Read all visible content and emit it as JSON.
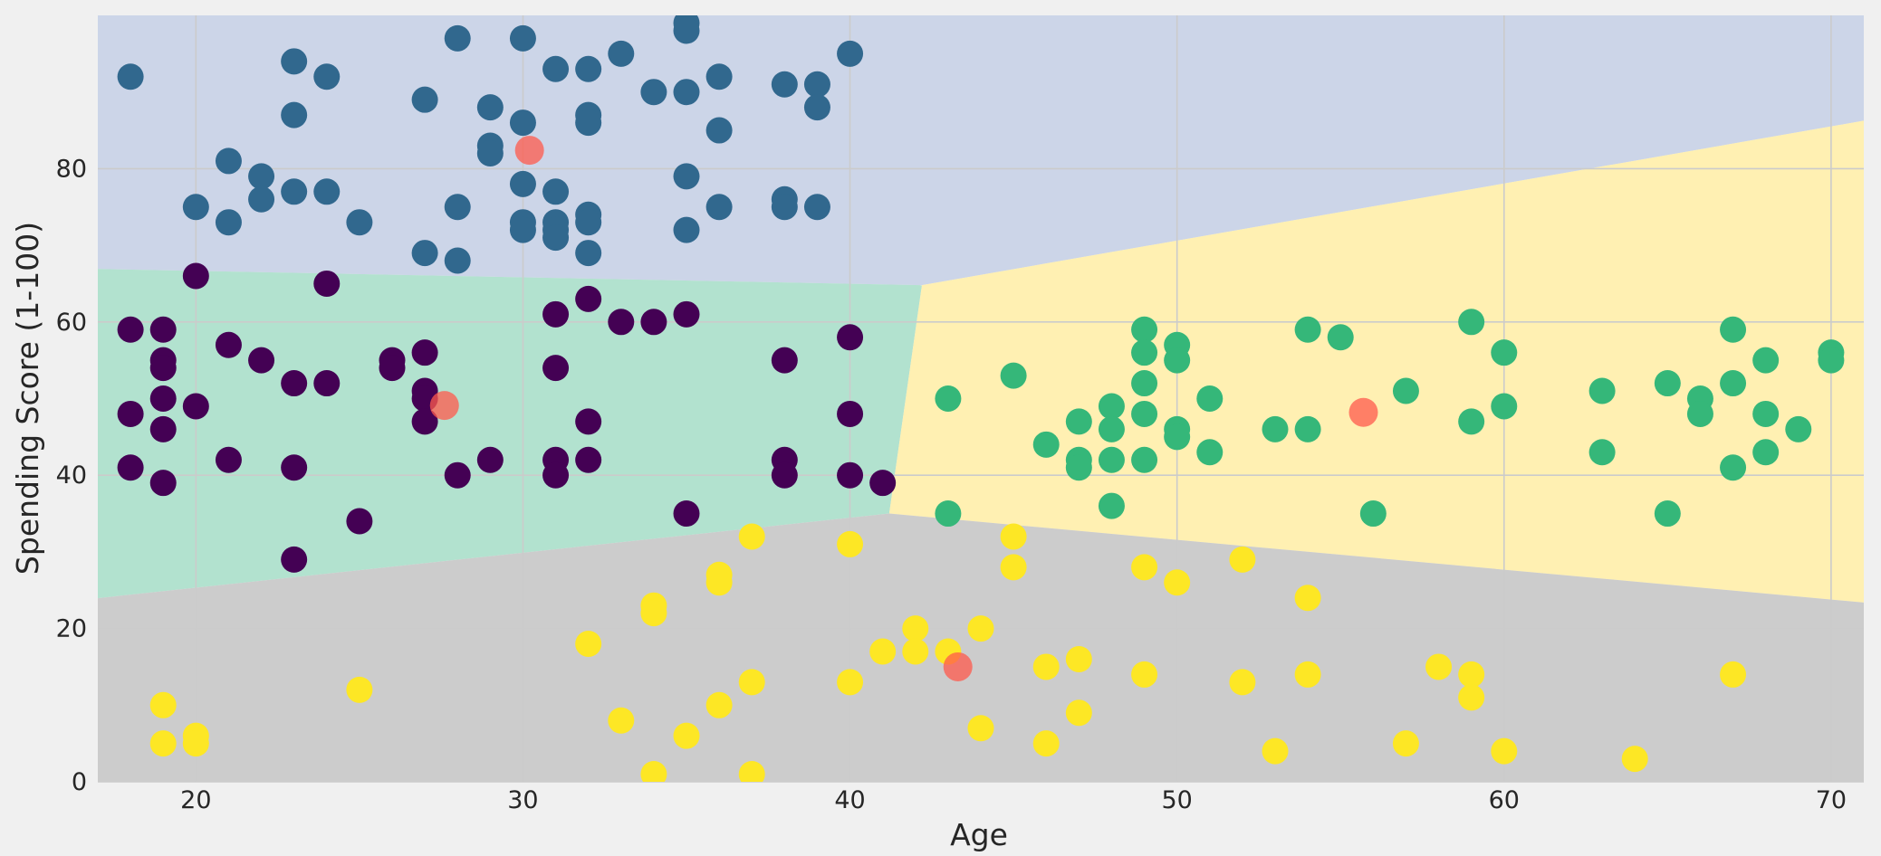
{
  "chart_data": {
    "type": "scatter",
    "title": "",
    "xlabel": "Age",
    "ylabel": "Spending Score (1-100)",
    "xlim": [
      17,
      71
    ],
    "ylim": [
      0,
      100
    ],
    "xticks": [
      20,
      30,
      40,
      50,
      60,
      70
    ],
    "yticks": [
      0,
      20,
      40,
      60,
      80
    ],
    "grid": true,
    "decision_regions": {
      "colors": {
        "top": "#ccd5e8",
        "left_middle": "#b2e2cf",
        "bottom": "#cccccc",
        "right_middle": "#fff0b2"
      }
    },
    "series": [
      {
        "color": "#31688e",
        "points": [
          [
            18,
            92
          ],
          [
            20,
            75
          ],
          [
            21,
            81
          ],
          [
            21,
            73
          ],
          [
            22,
            79
          ],
          [
            22,
            76
          ],
          [
            23,
            94
          ],
          [
            23,
            87
          ],
          [
            23,
            77
          ],
          [
            24,
            92
          ],
          [
            24,
            77
          ],
          [
            25,
            73
          ],
          [
            27,
            89
          ],
          [
            27,
            69
          ],
          [
            28,
            97
          ],
          [
            28,
            75
          ],
          [
            28,
            68
          ],
          [
            29,
            88
          ],
          [
            29,
            83
          ],
          [
            29,
            82
          ],
          [
            30,
            97
          ],
          [
            30,
            86
          ],
          [
            30,
            78
          ],
          [
            30,
            73
          ],
          [
            30,
            72
          ],
          [
            31,
            93
          ],
          [
            31,
            77
          ],
          [
            31,
            73
          ],
          [
            31,
            72
          ],
          [
            31,
            71
          ],
          [
            32,
            93
          ],
          [
            32,
            87
          ],
          [
            32,
            86
          ],
          [
            32,
            74
          ],
          [
            32,
            73
          ],
          [
            32,
            69
          ],
          [
            33,
            95
          ],
          [
            34,
            90
          ],
          [
            35,
            99
          ],
          [
            35,
            98
          ],
          [
            35,
            90
          ],
          [
            35,
            79
          ],
          [
            35,
            72
          ],
          [
            36,
            92
          ],
          [
            36,
            85
          ],
          [
            36,
            75
          ],
          [
            38,
            91
          ],
          [
            38,
            76
          ],
          [
            38,
            75
          ],
          [
            39,
            91
          ],
          [
            39,
            88
          ],
          [
            39,
            75
          ],
          [
            40,
            95
          ]
        ]
      },
      {
        "color": "#440154",
        "points": [
          [
            18,
            59
          ],
          [
            18,
            48
          ],
          [
            18,
            41
          ],
          [
            19,
            59
          ],
          [
            19,
            55
          ],
          [
            19,
            54
          ],
          [
            19,
            50
          ],
          [
            19,
            46
          ],
          [
            19,
            39
          ],
          [
            20,
            66
          ],
          [
            20,
            49
          ],
          [
            21,
            57
          ],
          [
            21,
            42
          ],
          [
            22,
            55
          ],
          [
            23,
            52
          ],
          [
            23,
            41
          ],
          [
            23,
            29
          ],
          [
            24,
            65
          ],
          [
            24,
            52
          ],
          [
            25,
            34
          ],
          [
            26,
            55
          ],
          [
            26,
            54
          ],
          [
            27,
            56
          ],
          [
            27,
            51
          ],
          [
            27,
            50
          ],
          [
            27,
            47
          ],
          [
            28,
            40
          ],
          [
            29,
            42
          ],
          [
            31,
            61
          ],
          [
            31,
            54
          ],
          [
            31,
            42
          ],
          [
            31,
            40
          ],
          [
            32,
            63
          ],
          [
            32,
            47
          ],
          [
            32,
            42
          ],
          [
            33,
            60
          ],
          [
            34,
            60
          ],
          [
            35,
            61
          ],
          [
            35,
            35
          ],
          [
            38,
            55
          ],
          [
            38,
            42
          ],
          [
            38,
            40
          ],
          [
            40,
            58
          ],
          [
            40,
            48
          ],
          [
            40,
            40
          ],
          [
            41,
            39
          ]
        ]
      },
      {
        "color": "#35b779",
        "points": [
          [
            43,
            50
          ],
          [
            43,
            35
          ],
          [
            45,
            53
          ],
          [
            46,
            44
          ],
          [
            47,
            47
          ],
          [
            47,
            42
          ],
          [
            47,
            41
          ],
          [
            48,
            49
          ],
          [
            48,
            46
          ],
          [
            48,
            42
          ],
          [
            48,
            36
          ],
          [
            49,
            59
          ],
          [
            49,
            56
          ],
          [
            49,
            52
          ],
          [
            49,
            48
          ],
          [
            49,
            42
          ],
          [
            50,
            57
          ],
          [
            50,
            55
          ],
          [
            50,
            46
          ],
          [
            50,
            45
          ],
          [
            51,
            50
          ],
          [
            51,
            43
          ],
          [
            53,
            46
          ],
          [
            54,
            59
          ],
          [
            54,
            46
          ],
          [
            55,
            58
          ],
          [
            56,
            35
          ],
          [
            57,
            51
          ],
          [
            59,
            60
          ],
          [
            59,
            47
          ],
          [
            60,
            56
          ],
          [
            60,
            49
          ],
          [
            63,
            51
          ],
          [
            63,
            43
          ],
          [
            65,
            52
          ],
          [
            65,
            35
          ],
          [
            66,
            50
          ],
          [
            66,
            48
          ],
          [
            67,
            59
          ],
          [
            67,
            52
          ],
          [
            67,
            41
          ],
          [
            68,
            55
          ],
          [
            68,
            48
          ],
          [
            68,
            43
          ],
          [
            69,
            46
          ],
          [
            70,
            56
          ],
          [
            70,
            55
          ]
        ]
      },
      {
        "color": "#fde725",
        "points": [
          [
            19,
            10
          ],
          [
            19,
            5
          ],
          [
            20,
            6
          ],
          [
            20,
            5
          ],
          [
            25,
            12
          ],
          [
            32,
            18
          ],
          [
            33,
            8
          ],
          [
            34,
            23
          ],
          [
            34,
            22
          ],
          [
            34,
            1
          ],
          [
            35,
            6
          ],
          [
            36,
            27
          ],
          [
            36,
            26
          ],
          [
            36,
            10
          ],
          [
            37,
            32
          ],
          [
            37,
            13
          ],
          [
            37,
            1
          ],
          [
            40,
            31
          ],
          [
            40,
            13
          ],
          [
            41,
            17
          ],
          [
            42,
            20
          ],
          [
            42,
            17
          ],
          [
            43,
            17
          ],
          [
            44,
            20
          ],
          [
            44,
            7
          ],
          [
            45,
            32
          ],
          [
            45,
            28
          ],
          [
            46,
            15
          ],
          [
            46,
            5
          ],
          [
            47,
            16
          ],
          [
            47,
            9
          ],
          [
            49,
            28
          ],
          [
            49,
            14
          ],
          [
            50,
            26
          ],
          [
            52,
            29
          ],
          [
            52,
            13
          ],
          [
            53,
            4
          ],
          [
            54,
            24
          ],
          [
            54,
            14
          ],
          [
            57,
            5
          ],
          [
            58,
            15
          ],
          [
            59,
            14
          ],
          [
            59,
            11
          ],
          [
            60,
            4
          ],
          [
            64,
            3
          ],
          [
            67,
            14
          ]
        ]
      },
      {
        "color": "#ff5a4c",
        "points": [
          [
            30.2,
            82.4
          ],
          [
            27.6,
            49.1
          ],
          [
            55.7,
            48.2
          ],
          [
            43.3,
            15.0
          ]
        ]
      }
    ]
  }
}
